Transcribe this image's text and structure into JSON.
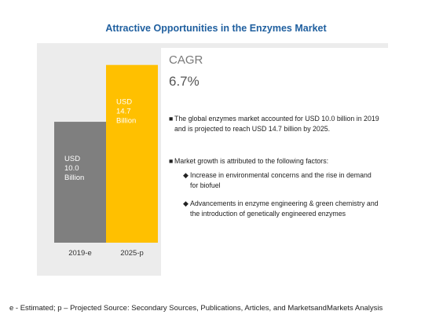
{
  "title": "Attractive Opportunities in the Enzymes Market",
  "chart_data": {
    "type": "bar",
    "categories": [
      "2019-e",
      "2025-p"
    ],
    "values": [
      10.0,
      14.7
    ],
    "bar_labels": [
      [
        "USD",
        "10.0",
        "Billion"
      ],
      [
        "USD",
        "14.7",
        "Billion"
      ]
    ],
    "colors": [
      "#7f7f7f",
      "#ffc000"
    ],
    "ylim": [
      0,
      16.5
    ]
  },
  "cagr": {
    "label": "CAGR",
    "value": "6.7%"
  },
  "bullets": {
    "main1": "The global enzymes market accounted for USD 10.0 billion in 2019 and is projected to reach USD 14.7 billion by 2025.",
    "main2": "Market growth is attributed to the following factors:",
    "sub1": "Increase in environmental concerns and the rise in demand for biofuel",
    "sub2": "Advancements in enzyme engineering & green chemistry and the introduction of genetically engineered enzymes",
    "main_marker": "■",
    "sub_marker": "◆"
  },
  "footnote": "e - Estimated;  p – Projected  Source: Secondary Sources, Publications, Articles, and MarketsandMarkets Analysis"
}
